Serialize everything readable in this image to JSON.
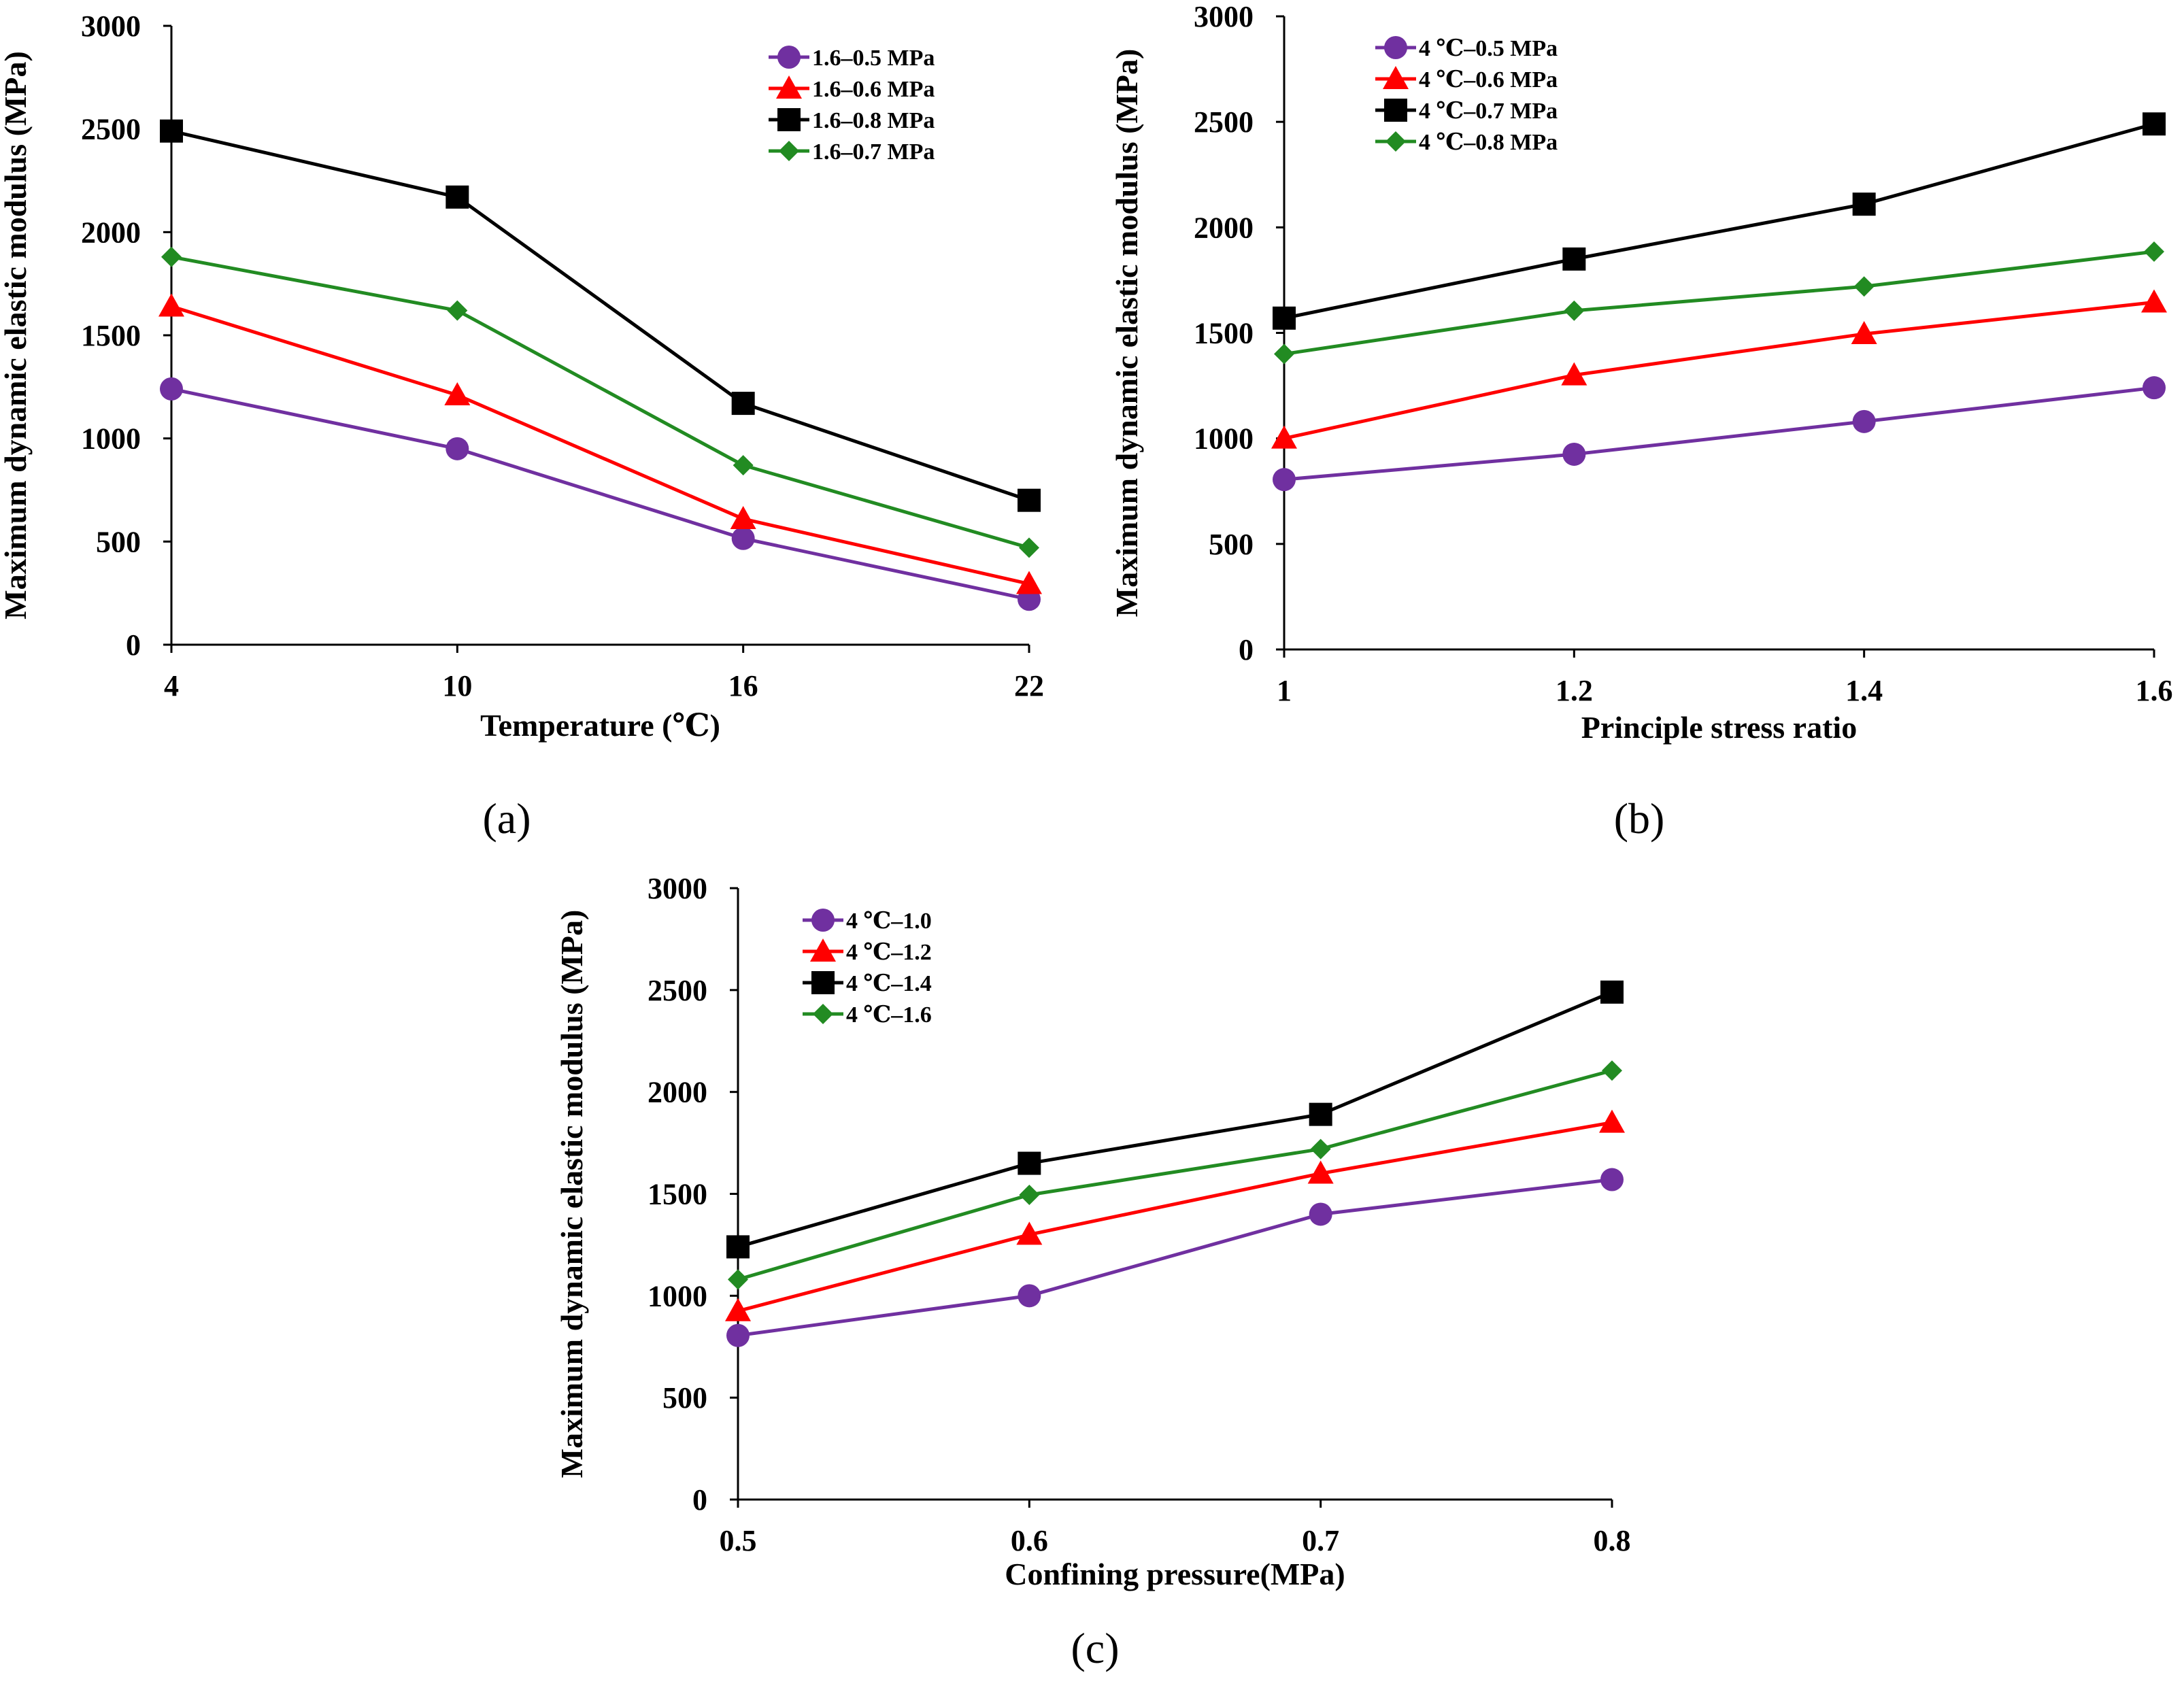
{
  "figure": {
    "panels": [
      {
        "label": "(a)"
      },
      {
        "label": "(b)"
      },
      {
        "label": "(c)"
      }
    ]
  },
  "chart_data": [
    {
      "type": "line",
      "panel": "(a)",
      "xlabel": "Temperature (℃)",
      "ylabel": "Maximum dynamic elastic modulus (MPa)",
      "x": [
        4,
        10,
        16,
        22
      ],
      "x_tick_labels": [
        "4",
        "10",
        "16",
        "22"
      ],
      "ylim": [
        0,
        3000
      ],
      "y_ticks": [
        0,
        500,
        1000,
        1500,
        2000,
        2500,
        3000
      ],
      "y_tick_labels": [
        "0",
        "500",
        "1000",
        "1500",
        "2000",
        "2500",
        "3000"
      ],
      "legend_position": "top-right",
      "grid": false,
      "series": [
        {
          "name": "1.6–0.5 MPa",
          "color": "#7030a0",
          "marker": "circle",
          "values": [
            1240,
            950,
            515,
            220
          ]
        },
        {
          "name": "1.6–0.6 MPa",
          "color": "#ff0000",
          "marker": "triangle",
          "values": [
            1640,
            1210,
            610,
            295
          ]
        },
        {
          "name": "1.6–0.8 MPa",
          "color": "#000000",
          "marker": "square",
          "values": [
            2490,
            2170,
            1170,
            700
          ]
        },
        {
          "name": "1.6–0.7 MPa",
          "color": "#228b22",
          "marker": "diamond",
          "values": [
            1880,
            1620,
            870,
            470
          ]
        }
      ]
    },
    {
      "type": "line",
      "panel": "(b)",
      "xlabel": "Principle stress ratio",
      "ylabel": "Maximum dynamic elastic modulus (MPa)",
      "x": [
        1.0,
        1.2,
        1.4,
        1.6
      ],
      "x_tick_labels": [
        "1",
        "1.2",
        "1.4",
        "1.6"
      ],
      "ylim": [
        0,
        3000
      ],
      "y_ticks": [
        0,
        500,
        1000,
        1500,
        2000,
        2500,
        3000
      ],
      "y_tick_labels": [
        "0",
        "500",
        "1000",
        "1500",
        "2000",
        "2500",
        "3000"
      ],
      "legend_position": "top-left",
      "grid": false,
      "series": [
        {
          "name": "4 ℃–0.5 MPa",
          "color": "#7030a0",
          "marker": "circle",
          "values": [
            805,
            925,
            1080,
            1240
          ]
        },
        {
          "name": "4 ℃–0.6 MPa",
          "color": "#ff0000",
          "marker": "triangle",
          "values": [
            1000,
            1300,
            1495,
            1645
          ]
        },
        {
          "name": "4 ℃–0.7 MPa",
          "color": "#000000",
          "marker": "square",
          "values": [
            1570,
            1850,
            2110,
            2490
          ]
        },
        {
          "name": "4 ℃–0.8 MPa",
          "color": "#228b22",
          "marker": "diamond",
          "values": [
            1400,
            1605,
            1720,
            1885
          ]
        }
      ]
    },
    {
      "type": "line",
      "panel": "(c)",
      "xlabel": "Confining pressure(MPa)",
      "ylabel": "Maximum dynamic elastic modulus (MPa)",
      "x": [
        0.5,
        0.6,
        0.7,
        0.8
      ],
      "x_tick_labels": [
        "0.5",
        "0.6",
        "0.7",
        "0.8"
      ],
      "ylim": [
        0,
        3000
      ],
      "y_ticks": [
        0,
        500,
        1000,
        1500,
        2000,
        2500,
        3000
      ],
      "y_tick_labels": [
        "0",
        "500",
        "1000",
        "1500",
        "2000",
        "2500",
        "3000"
      ],
      "legend_position": "top-left",
      "grid": false,
      "series": [
        {
          "name": "4 ℃–1.0",
          "color": "#7030a0",
          "marker": "circle",
          "values": [
            805,
            1000,
            1400,
            1570
          ]
        },
        {
          "name": "4 ℃–1.2",
          "color": "#ff0000",
          "marker": "triangle",
          "values": [
            925,
            1300,
            1600,
            1850
          ]
        },
        {
          "name": "4 ℃–1.4",
          "color": "#000000",
          "marker": "square",
          "values": [
            1240,
            1650,
            1890,
            2490
          ]
        },
        {
          "name": "4 ℃–1.6",
          "color": "#228b22",
          "marker": "diamond",
          "values": [
            1080,
            1495,
            1720,
            2105
          ]
        }
      ]
    }
  ]
}
